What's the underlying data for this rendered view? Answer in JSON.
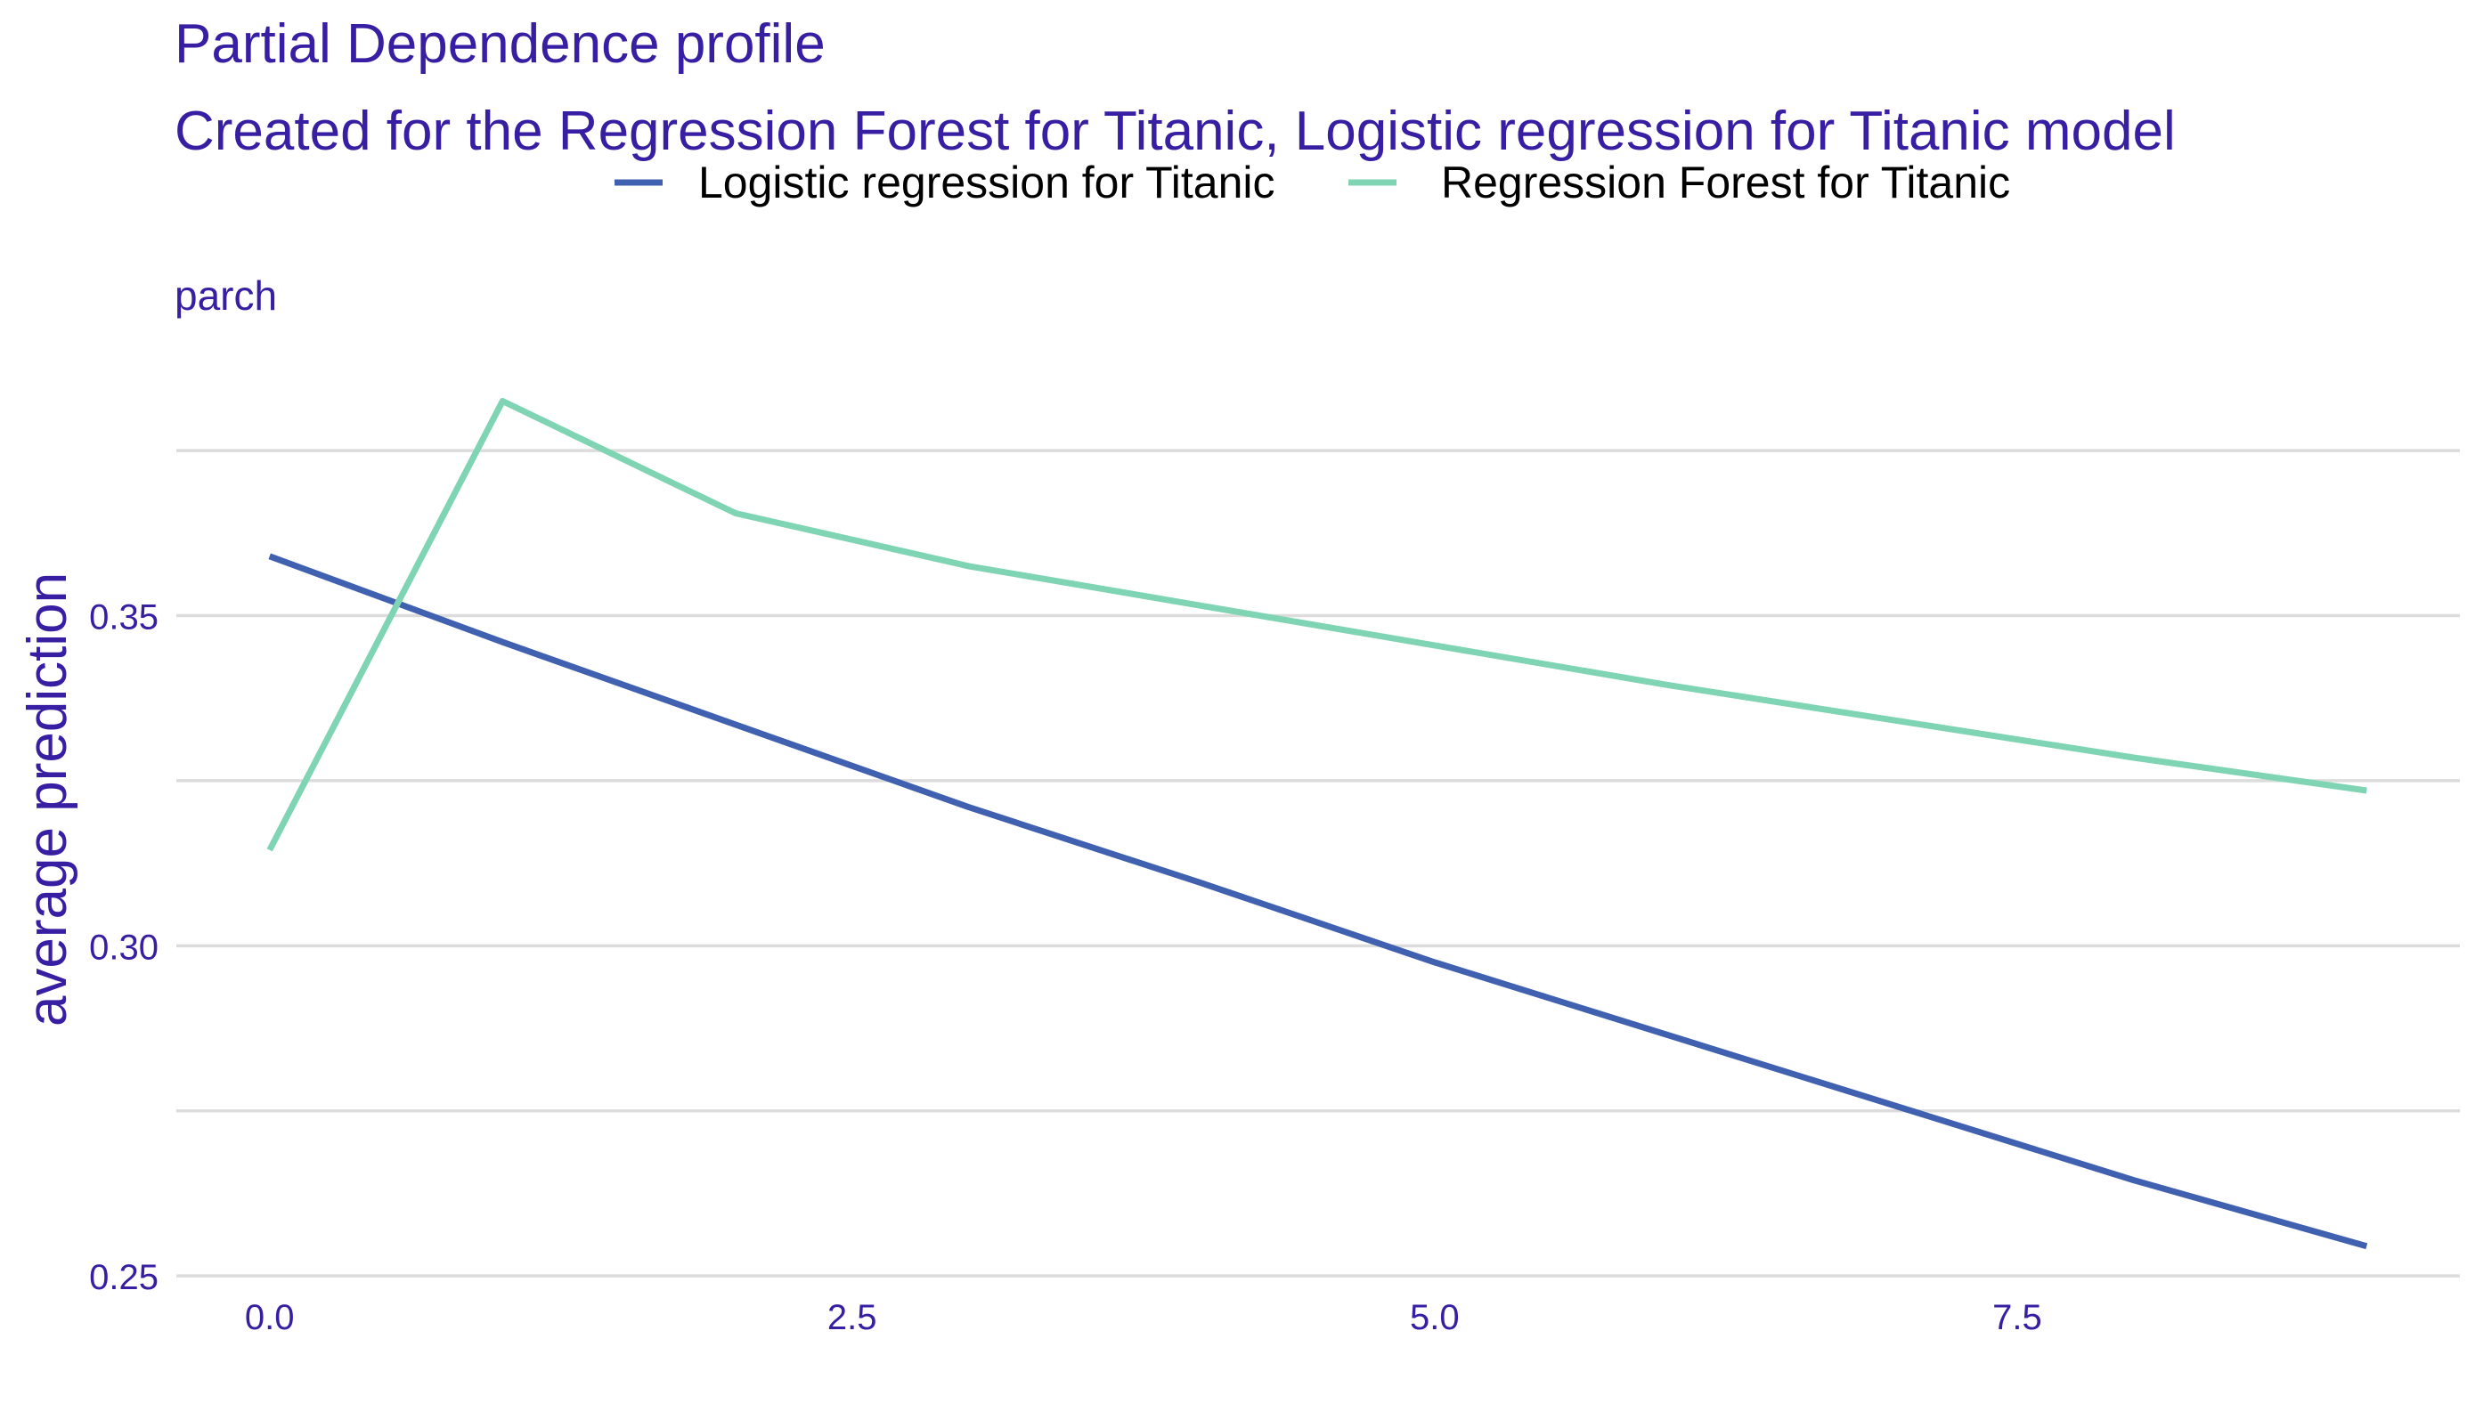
{
  "chart_data": {
    "type": "line",
    "title": "Partial Dependence profile",
    "subtitle": "Created for the Regression Forest for Titanic, Logistic regression for Titanic model",
    "panel_label": "parch",
    "xlabel": "",
    "ylabel": "average prediction",
    "xlim": [
      -0.4,
      9.4
    ],
    "ylim": [
      0.248,
      0.392
    ],
    "x_ticks": [
      0,
      2.5,
      5,
      7.5
    ],
    "x_tick_labels": [
      "0.0",
      "2.5",
      "5.0",
      "7.5"
    ],
    "y_ticks": [
      0.25,
      0.3,
      0.35
    ],
    "y_tick_labels": [
      "0.25",
      "0.30",
      "0.35"
    ],
    "y_grid": [
      0.25,
      0.275,
      0.3,
      0.325,
      0.35,
      0.375
    ],
    "grid": true,
    "legend_position": "top",
    "series": [
      {
        "name": "Logistic regression for Titanic",
        "color": "#4060b0",
        "x": [
          0,
          1,
          2,
          3,
          4,
          5,
          6,
          7,
          8,
          9
        ],
        "y": [
          0.359,
          0.346,
          0.3335,
          0.321,
          0.3095,
          0.2975,
          0.2865,
          0.2755,
          0.2645,
          0.2545
        ]
      },
      {
        "name": "Regression Forest for Titanic",
        "color": "#7fd4b3",
        "x": [
          0,
          1,
          2,
          3,
          4,
          5,
          6,
          7,
          8,
          9
        ],
        "y": [
          0.3145,
          0.3825,
          0.3655,
          0.3575,
          0.3515,
          0.3455,
          0.3395,
          0.334,
          0.3285,
          0.3235
        ]
      }
    ]
  }
}
